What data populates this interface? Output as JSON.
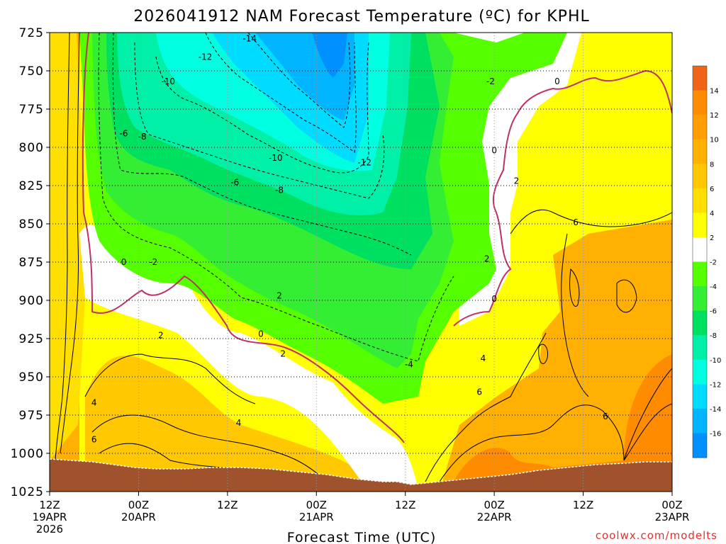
{
  "chart_data": {
    "type": "heatmap",
    "title": "2026041912 NAM Forecast Temperature (ºC) for KPHL",
    "xlabel": "Forecast Time (UTC)",
    "credit": "coolwx.com/modelts",
    "y_ticks": [
      {
        "label": "725",
        "p": 725
      },
      {
        "label": "750",
        "p": 750
      },
      {
        "label": "775",
        "p": 775
      },
      {
        "label": "800",
        "p": 800
      },
      {
        "label": "825",
        "p": 825
      },
      {
        "label": "850",
        "p": 850
      },
      {
        "label": "875",
        "p": 875
      },
      {
        "label": "900",
        "p": 900
      },
      {
        "label": "925",
        "p": 925
      },
      {
        "label": "950",
        "p": 950
      },
      {
        "label": "975",
        "p": 975
      },
      {
        "label": "1000",
        "p": 1000
      },
      {
        "label": "1025",
        "p": 1025
      }
    ],
    "ylim": [
      725,
      1025
    ],
    "x_ticks": [
      {
        "h": 0,
        "lines": [
          "12Z",
          "19APR",
          "2026"
        ]
      },
      {
        "h": 12,
        "lines": [
          "00Z",
          "20APR"
        ]
      },
      {
        "h": 24,
        "lines": [
          "12Z"
        ]
      },
      {
        "h": 36,
        "lines": [
          "00Z",
          "21APR"
        ]
      },
      {
        "h": 48,
        "lines": [
          "12Z"
        ]
      },
      {
        "h": 60,
        "lines": [
          "00Z",
          "22APR"
        ]
      },
      {
        "h": 72,
        "lines": [
          "12Z"
        ]
      },
      {
        "h": 84,
        "lines": [
          "00Z",
          "23APR"
        ]
      }
    ],
    "xlim": [
      0,
      84
    ],
    "colorbar": {
      "labels": [
        "14",
        "12",
        "10",
        "8",
        "6",
        "4",
        "2",
        "-2",
        "-4",
        "-6",
        "-8",
        "-10",
        "-12",
        "-14",
        "-16"
      ],
      "colors": [
        "#f06418",
        "#ff8c00",
        "#ff9e00",
        "#ffb000",
        "#ffc800",
        "#ffdf00",
        "#ffff00",
        "#ffffff",
        "#55ff00",
        "#33ee33",
        "#00e060",
        "#00f0a8",
        "#00ffe0",
        "#00dcff",
        "#00b4ff",
        "#0090ff"
      ]
    },
    "contour_labels": [
      {
        "text": "-14",
        "h": 27.0,
        "p": 729
      },
      {
        "text": "-12",
        "h": 21.0,
        "p": 741
      },
      {
        "text": "-10",
        "h": 16.0,
        "p": 757
      },
      {
        "text": "-6",
        "h": 10.0,
        "p": 791
      },
      {
        "text": "-8",
        "h": 12.5,
        "p": 793
      },
      {
        "text": "-10",
        "h": 30.5,
        "p": 807
      },
      {
        "text": "-12",
        "h": 42.5,
        "p": 810
      },
      {
        "text": "-6",
        "h": 25.0,
        "p": 823
      },
      {
        "text": "-8",
        "h": 31.0,
        "p": 828
      },
      {
        "text": "-2",
        "h": 59.5,
        "p": 757
      },
      {
        "text": "0",
        "h": 68.5,
        "p": 757
      },
      {
        "text": "0",
        "h": 60.0,
        "p": 802
      },
      {
        "text": "2",
        "h": 63.0,
        "p": 822
      },
      {
        "text": "6",
        "h": 71.0,
        "p": 849
      },
      {
        "text": "0",
        "h": 10.0,
        "p": 875
      },
      {
        "text": "-2",
        "h": 14.0,
        "p": 875
      },
      {
        "text": "2",
        "h": 31.0,
        "p": 897
      },
      {
        "text": "2",
        "h": 59.0,
        "p": 873
      },
      {
        "text": "0",
        "h": 60.0,
        "p": 899
      },
      {
        "text": "2",
        "h": 15.0,
        "p": 923
      },
      {
        "text": "0",
        "h": 28.5,
        "p": 922
      },
      {
        "text": "2",
        "h": 31.5,
        "p": 935
      },
      {
        "text": "-4",
        "h": 48.5,
        "p": 942
      },
      {
        "text": "4",
        "h": 58.5,
        "p": 938
      },
      {
        "text": "6",
        "h": 58.0,
        "p": 960
      },
      {
        "text": "4",
        "h": 6.0,
        "p": 967
      },
      {
        "text": "4",
        "h": 25.5,
        "p": 980
      },
      {
        "text": "6",
        "h": 75.0,
        "p": 976
      },
      {
        "text": "6",
        "h": 6.0,
        "p": 991
      }
    ],
    "grid": "dotted"
  }
}
